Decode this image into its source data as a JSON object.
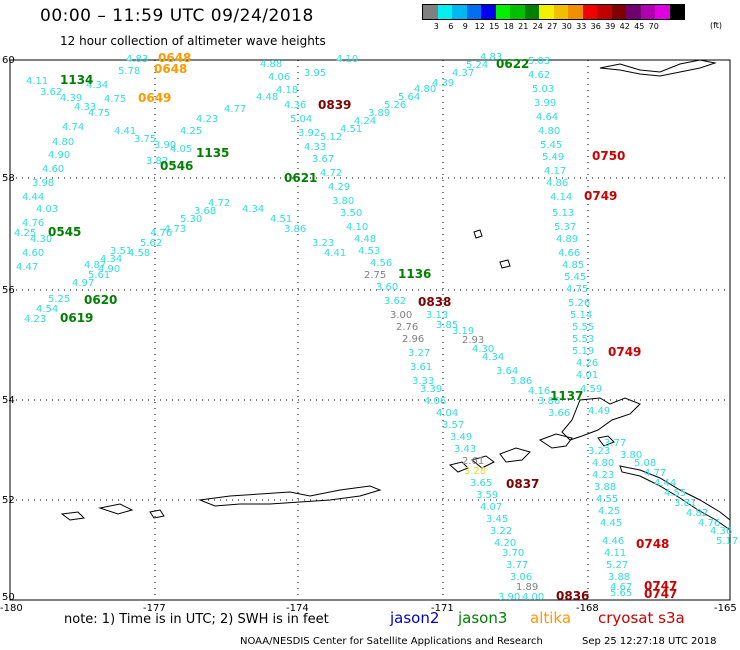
{
  "header": {
    "title": "00:00 – 11:59 UTC 09/24/2018",
    "subtitle": "12 hour collection of altimeter wave heights"
  },
  "legend": {
    "colors": [
      "#808080",
      "#00f0f0",
      "#00b8f0",
      "#0070f0",
      "#0000f0",
      "#00f000",
      "#00c000",
      "#008000",
      "#f0f000",
      "#f0c000",
      "#f09000",
      "#f00000",
      "#c00000",
      "#800000",
      "#700070",
      "#b000b0",
      "#e000e0",
      "#000000"
    ],
    "labels": [
      "3",
      "6",
      "9",
      "12",
      "15",
      "18",
      "21",
      "24",
      "27",
      "30",
      "33",
      "36",
      "39",
      "42",
      "45",
      "70"
    ],
    "unit": "(ft)"
  },
  "axes": {
    "lon_labels": [
      "-180",
      "-177",
      "-174",
      "-171",
      "-168",
      "-165"
    ],
    "lat_labels": [
      "60",
      "58",
      "56",
      "54",
      "52",
      "50"
    ]
  },
  "satellites": {
    "jason2": {
      "name": "jason2",
      "color": "#0000cc"
    },
    "jason3": {
      "name": "jason3",
      "color": "#008000"
    },
    "altika": {
      "name": "altika",
      "color": "#ff9900"
    },
    "cryosat": {
      "name": "cryosat s3a",
      "color": "#cc0000"
    }
  },
  "colors": {
    "cyan": "#33dddd",
    "gray": "#808080",
    "yellow": "#dddd33"
  },
  "track_labels": [
    {
      "text": "1134",
      "color": "#008000"
    },
    {
      "text": "0648",
      "color": "#ff9900"
    },
    {
      "text": "0648",
      "color": "#ff9900"
    },
    {
      "text": "0649",
      "color": "#ff9900"
    },
    {
      "text": "0546",
      "color": "#008000"
    },
    {
      "text": "1135",
      "color": "#008000"
    },
    {
      "text": "0545",
      "color": "#008000"
    },
    {
      "text": "0620",
      "color": "#008000"
    },
    {
      "text": "0619",
      "color": "#008000"
    },
    {
      "text": "0621",
      "color": "#008000"
    },
    {
      "text": "0839",
      "color": "#800000"
    },
    {
      "text": "0622",
      "color": "#008000"
    },
    {
      "text": "0750",
      "color": "#cc0000"
    },
    {
      "text": "0749",
      "color": "#cc0000"
    },
    {
      "text": "1136",
      "color": "#008000"
    },
    {
      "text": "0838",
      "color": "#800000"
    },
    {
      "text": "0749",
      "color": "#cc0000"
    },
    {
      "text": "1137",
      "color": "#008000"
    },
    {
      "text": "0837",
      "color": "#800000"
    },
    {
      "text": "0748",
      "color": "#cc0000"
    },
    {
      "text": "0836",
      "color": "#800000"
    },
    {
      "text": "0747",
      "color": "#cc0000"
    },
    {
      "text": "0747",
      "color": "#cc0000"
    }
  ],
  "wave_values": [
    "4.11",
    "3.62",
    "4.39",
    "4.33",
    "4.75",
    "4.74",
    "4.80",
    "4.90",
    "4.60",
    "3.98",
    "4.44",
    "4.03",
    "4.76",
    "4.25",
    "4.30",
    "4.60",
    "4.47",
    "4.83",
    "5.78",
    "4.34",
    "4.75",
    "4.41",
    "3.75",
    "3.90",
    "4.05",
    "3.82",
    "4.25",
    "4.23",
    "4.77",
    "4.88",
    "4.06",
    "4.18",
    "4.48",
    "4.36",
    "5.04",
    "3.92",
    "4.33",
    "3.67",
    "4.72",
    "4.29",
    "3.80",
    "3.50",
    "4.10",
    "4.48",
    "4.53",
    "4.56",
    "2.75",
    "3.60",
    "3.62",
    "3.00",
    "2.76",
    "2.96",
    "3.13",
    "3.85",
    "3.19",
    "2.93",
    "4.30",
    "4.34",
    "3.64",
    "3.86",
    "4.16",
    "3.86",
    "3.66",
    "4.10",
    "4.39",
    "4.37",
    "5.24",
    "4.83",
    "5.03",
    "4.62",
    "5.03",
    "3.99",
    "4.64",
    "4.80",
    "5.45",
    "5.49",
    "4.17",
    "4.86",
    "4.14",
    "5.13",
    "5.37",
    "4.89",
    "4.66",
    "4.85",
    "5.45",
    "4.75",
    "5.26",
    "5.14",
    "5.55",
    "5.53",
    "5.19",
    "4.26",
    "4.01",
    "4.59",
    "4.49",
    "3.23",
    "4.80",
    "4.23",
    "3.88",
    "4.55",
    "4.25",
    "4.45",
    "4.46",
    "4.11",
    "5.27",
    "3.88",
    "4.67",
    "5.65",
    "3.77",
    "3.80",
    "5.08",
    "4.77",
    "4.44",
    "4.55",
    "3.81",
    "4.82",
    "4.76",
    "4.36",
    "5.17",
    "3.27",
    "3.61",
    "3.33",
    "3.39",
    "4.06",
    "4.04",
    "3.57",
    "3.49",
    "3.43",
    "2.61",
    "3.28",
    "3.65",
    "3.59",
    "4.07",
    "3.45",
    "3.22",
    "4.20",
    "3.70",
    "3.77",
    "3.06",
    "1.89",
    "3.90",
    "4.00",
    "4.87",
    "4.34",
    "3.51",
    "5.62",
    "4.58",
    "4.90",
    "5.61",
    "4.97",
    "5.25",
    "4.54",
    "4.23",
    "4.76",
    "4.73",
    "5.30",
    "3.68",
    "4.72",
    "4.34",
    "4.51",
    "3.86",
    "3.23",
    "4.41",
    "3.95",
    "5.12",
    "4.51",
    "5.26",
    "4.80",
    "4.24",
    "3.89",
    "5.64",
    "4.56"
  ],
  "notes": {
    "note": "note:  1) Time is in UTC;  2) SWH is in feet",
    "footer_left": "NOAA/NESDIS Center for Satellite Applications and Research",
    "footer_right": "Sep 25 12:27:18 UTC 2018"
  }
}
